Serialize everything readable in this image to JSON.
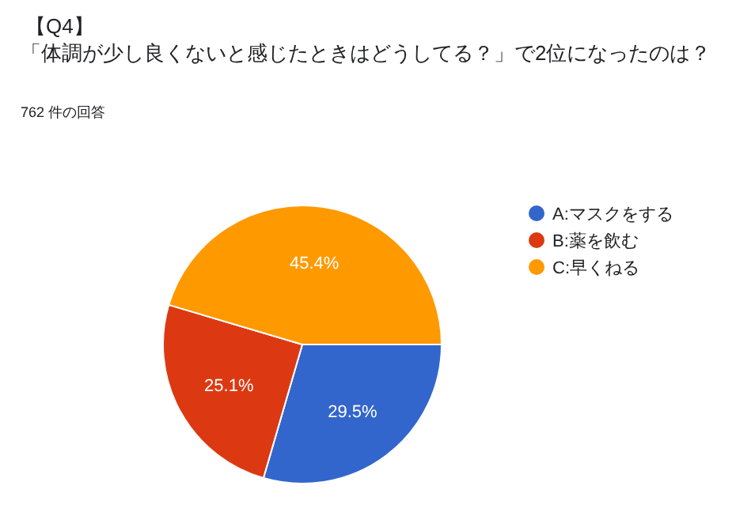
{
  "chart_data": {
    "type": "pie",
    "title": "【Q4】",
    "subtitle": "「体調が少し良くないと感じたときはどうしてる？」で2位になったのは？",
    "annotations": [
      "762 件の回答"
    ],
    "categories": [
      "A:マスクをする",
      "B:薬を飲む",
      "C:早くねる"
    ],
    "values": [
      29.5,
      25.1,
      45.4
    ],
    "value_labels": [
      "29.5%",
      "25.1%",
      "45.4%"
    ],
    "colors": [
      "#3366cc",
      "#dc3912",
      "#ff9900"
    ],
    "legend": "right"
  }
}
